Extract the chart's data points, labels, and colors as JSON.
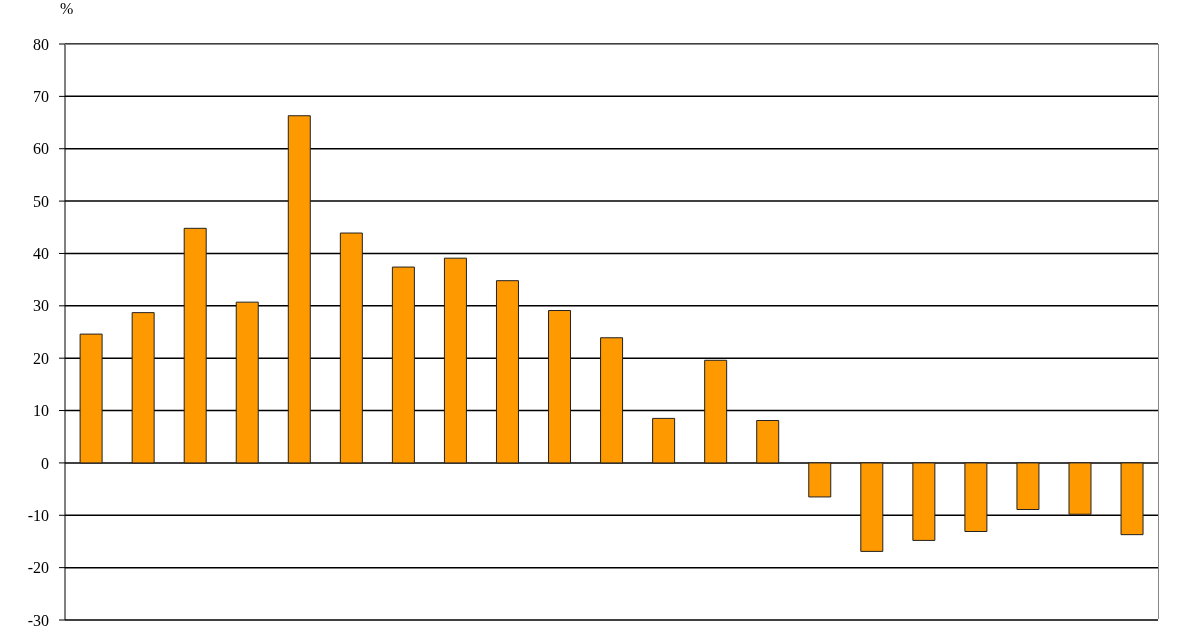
{
  "chart_data": {
    "type": "bar",
    "ylabel": "%",
    "categories": [
      null,
      null,
      null,
      null,
      null,
      null,
      null,
      null,
      null,
      null,
      null,
      null,
      null,
      null,
      null,
      null,
      null,
      null,
      null,
      null,
      null
    ],
    "values": [
      24.6,
      28.7,
      44.8,
      30.7,
      66.3,
      43.9,
      37.4,
      39.1,
      34.8,
      29.1,
      23.9,
      8.5,
      19.6,
      8.1,
      -6.5,
      -16.9,
      -14.8,
      -13.1,
      -8.9,
      -9.8,
      -13.7
    ],
    "color": "#ff9900",
    "ylim": [
      -30,
      80
    ],
    "yticks": [
      -30,
      -20,
      -10,
      0,
      10,
      20,
      30,
      40,
      50,
      60,
      70,
      80
    ],
    "grid": "y",
    "tick_labels": "y"
  }
}
